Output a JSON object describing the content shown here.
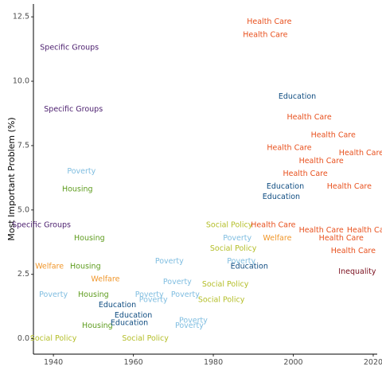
{
  "chart_data": {
    "type": "scatter",
    "marker": "text-labels",
    "xlabel": "",
    "ylabel": "Most Important Problem (%)",
    "xlim": [
      1935,
      2021
    ],
    "ylim": [
      -0.6,
      13
    ],
    "xticks": [
      1940,
      1960,
      1980,
      2000,
      2020
    ],
    "yticks": [
      0,
      2.5,
      5,
      7.5,
      10,
      12.5
    ],
    "ytick_labels": [
      "0.0",
      "2.5",
      "5.0",
      "7.5",
      "10.0",
      "12.5"
    ],
    "grid": false,
    "legend": "none",
    "colors": {
      "Specific Groups": "#4b1e6e",
      "Health Care": "#e8501d",
      "Education": "#0f4c81",
      "Poverty": "#7fbde0",
      "Housing": "#5e9c1e",
      "Welfare": "#f0962a",
      "Social Policy": "#b4be28",
      "Inequality": "#7a0f1e"
    },
    "points": [
      {
        "label": "Specific Groups",
        "x": 1944,
        "y": 11.3
      },
      {
        "label": "Specific Groups",
        "x": 1945,
        "y": 8.9
      },
      {
        "label": "Specific Groups",
        "x": 1937,
        "y": 4.4
      },
      {
        "label": "Health Care",
        "x": 1994,
        "y": 12.3
      },
      {
        "label": "Health Care",
        "x": 1993,
        "y": 11.8
      },
      {
        "label": "Education",
        "x": 2001,
        "y": 9.4
      },
      {
        "label": "Health Care",
        "x": 2004,
        "y": 8.6
      },
      {
        "label": "Health Care",
        "x": 2010,
        "y": 7.9
      },
      {
        "label": "Health Care",
        "x": 1999,
        "y": 7.4
      },
      {
        "label": "Health Care",
        "x": 2017,
        "y": 7.2
      },
      {
        "label": "Health Care",
        "x": 2007,
        "y": 6.9
      },
      {
        "label": "Health Care",
        "x": 2003,
        "y": 6.4
      },
      {
        "label": "Education",
        "x": 1998,
        "y": 5.9
      },
      {
        "label": "Health Care",
        "x": 2014,
        "y": 5.9
      },
      {
        "label": "Education",
        "x": 1997,
        "y": 5.5
      },
      {
        "label": "Poverty",
        "x": 1947,
        "y": 6.5
      },
      {
        "label": "Housing",
        "x": 1946,
        "y": 5.8
      },
      {
        "label": "Housing",
        "x": 1949,
        "y": 3.9
      },
      {
        "label": "Welfare",
        "x": 1939,
        "y": 2.8
      },
      {
        "label": "Housing",
        "x": 1948,
        "y": 2.8
      },
      {
        "label": "Welfare",
        "x": 1953,
        "y": 2.3
      },
      {
        "label": "Poverty",
        "x": 1940,
        "y": 1.7
      },
      {
        "label": "Housing",
        "x": 1950,
        "y": 1.7
      },
      {
        "label": "Housing",
        "x": 1951,
        "y": 0.5
      },
      {
        "label": "Social Policy",
        "x": 1940,
        "y": 0.0
      },
      {
        "label": "Education",
        "x": 1956,
        "y": 1.3
      },
      {
        "label": "Education",
        "x": 1960,
        "y": 0.9
      },
      {
        "label": "Education",
        "x": 1959,
        "y": 0.6
      },
      {
        "label": "Social Policy",
        "x": 1963,
        "y": 0.0
      },
      {
        "label": "Poverty",
        "x": 1969,
        "y": 3.0
      },
      {
        "label": "Poverty",
        "x": 1971,
        "y": 2.2
      },
      {
        "label": "Poverty",
        "x": 1964,
        "y": 1.7
      },
      {
        "label": "Poverty",
        "x": 1965,
        "y": 1.5
      },
      {
        "label": "Poverty",
        "x": 1973,
        "y": 1.7
      },
      {
        "label": "Poverty",
        "x": 1975,
        "y": 0.7
      },
      {
        "label": "Poverty",
        "x": 1974,
        "y": 0.5
      },
      {
        "label": "Social Policy",
        "x": 1984,
        "y": 4.4
      },
      {
        "label": "Social Policy",
        "x": 1985,
        "y": 3.5
      },
      {
        "label": "Social Policy",
        "x": 1983,
        "y": 2.1
      },
      {
        "label": "Social Policy",
        "x": 1982,
        "y": 1.5
      },
      {
        "label": "Poverty",
        "x": 1986,
        "y": 3.9
      },
      {
        "label": "Poverty",
        "x": 1987,
        "y": 3.0
      },
      {
        "label": "Education",
        "x": 1989,
        "y": 2.8
      },
      {
        "label": "Health Care",
        "x": 1995,
        "y": 4.4
      },
      {
        "label": "Welfare",
        "x": 1996,
        "y": 3.9
      },
      {
        "label": "Health Care",
        "x": 2007,
        "y": 4.2
      },
      {
        "label": "Health Care",
        "x": 2012,
        "y": 3.9
      },
      {
        "label": "Health Care",
        "x": 2019,
        "y": 4.2
      },
      {
        "label": "Health Care",
        "x": 2015,
        "y": 3.4
      },
      {
        "label": "Inequality",
        "x": 2016,
        "y": 2.6
      }
    ]
  }
}
